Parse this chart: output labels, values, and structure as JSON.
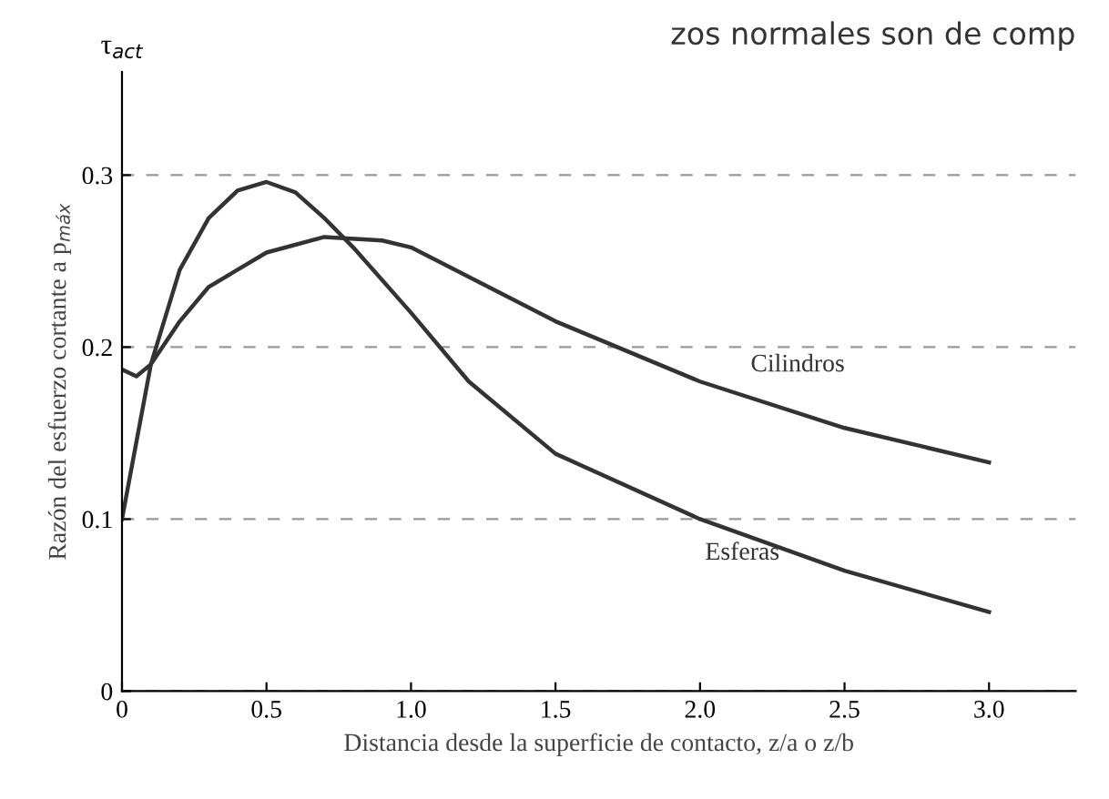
{
  "chart_data": {
    "type": "line",
    "title": "zos normales son de comp",
    "xlabel": "Distancia desde la superficie de contacto, z/a o z/b",
    "ylabel": "Razón del esfuerzo cortante a p$_{máx}$",
    "annotations": [
      "τ$_{act}$"
    ],
    "series": [
      {
        "name": "Cilindros",
        "color": "#333333",
        "x": [
          0,
          0.05,
          0.1,
          0.2,
          0.3,
          0.5,
          0.7,
          0.9,
          1.0,
          1.5,
          2.0,
          2.5,
          3.0
        ],
        "values": [
          0.187,
          0.183,
          0.19,
          0.215,
          0.235,
          0.255,
          0.264,
          0.262,
          0.258,
          0.215,
          0.18,
          0.153,
          0.133
        ]
      },
      {
        "name": "Esferas",
        "color": "#333333",
        "x": [
          0,
          0.1,
          0.2,
          0.3,
          0.4,
          0.5,
          0.6,
          0.7,
          0.8,
          1.0,
          1.2,
          1.5,
          2.0,
          2.5,
          3.0
        ],
        "values": [
          0.1,
          0.19,
          0.245,
          0.275,
          0.291,
          0.296,
          0.29,
          0.275,
          0.258,
          0.22,
          0.18,
          0.138,
          0.1,
          0.07,
          0.046
        ]
      }
    ],
    "xlim": [
      0,
      3.3
    ],
    "ylim": [
      0,
      0.36
    ],
    "xticks": [
      0,
      0.5,
      {
        "value": 1,
        "label": "1.0"
      },
      1.5,
      {
        "value": 2,
        "label": "2.0"
      },
      2.5,
      {
        "value": 3,
        "label": "3.0"
      }
    ],
    "yticks": [
      0,
      0.1,
      0.2,
      0.3
    ],
    "grid": "y",
    "line_style": "solid"
  }
}
